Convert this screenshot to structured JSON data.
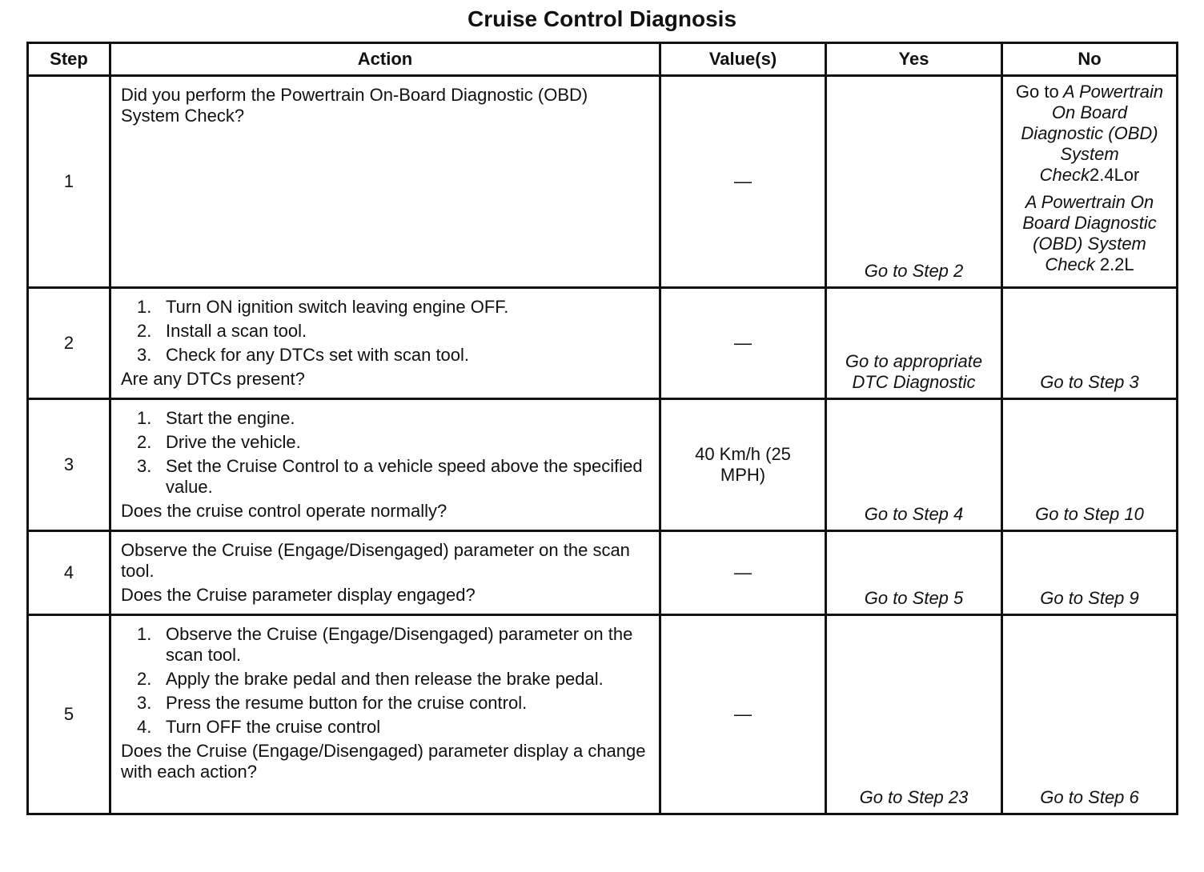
{
  "title": "Cruise Control Diagnosis",
  "table": {
    "headers": [
      "Step",
      "Action",
      "Value(s)",
      "Yes",
      "No"
    ],
    "rows": [
      {
        "step": "1",
        "action": {
          "lead": "Did you perform the Powertrain On-Board Diagnostic (OBD) System Check?"
        },
        "value": "—",
        "yes": "Go to Step 2",
        "no": {
          "prefix": "Go to",
          "links": [
            {
              "title": "A Powertrain On Board Diagnostic (OBD) System Check",
              "suffix": "2.4Lor"
            },
            {
              "title": "A Powertrain On Board Diagnostic (OBD) System Check",
              "suffix": "2.2L"
            }
          ]
        }
      },
      {
        "step": "2",
        "action": {
          "items": [
            {
              "n": "1.",
              "text": "Turn ON ignition switch leaving engine OFF."
            },
            {
              "n": "2.",
              "text": "Install a scan tool."
            },
            {
              "n": "3.",
              "text": "Check for any DTCs set with scan tool."
            }
          ],
          "question": "Are any DTCs present?"
        },
        "value": "—",
        "yes": "Go to appropriate DTC Diagnostic",
        "yes_italic": false,
        "no": "Go to Step 3"
      },
      {
        "step": "3",
        "action": {
          "items": [
            {
              "n": "1.",
              "text": "Start the engine."
            },
            {
              "n": "2.",
              "text": "Drive the vehicle."
            },
            {
              "n": "3.",
              "text": "Set the Cruise Control to a vehicle speed above the specified value."
            }
          ],
          "question": "Does the cruise control operate normally?"
        },
        "value": "40 Km/h (25 MPH)",
        "yes": "Go to Step 4",
        "no": "Go to Step 10"
      },
      {
        "step": "4",
        "action": {
          "lead": "Observe the Cruise (Engage/Disengaged) parameter on the scan tool.",
          "question": "Does the Cruise parameter display engaged?"
        },
        "value": "—",
        "yes": "Go to Step 5",
        "no": "Go to Step 9"
      },
      {
        "step": "5",
        "action": {
          "items": [
            {
              "n": "1.",
              "text": "Observe the Cruise (Engage/Disengaged) parameter on the scan tool."
            },
            {
              "n": "2.",
              "text": "Apply the brake pedal and then release the brake pedal."
            },
            {
              "n": "3.",
              "text": "Press the resume button for the cruise control."
            },
            {
              "n": "4.",
              "text": "Turn OFF the cruise control"
            }
          ],
          "question": "Does the Cruise (Engage/Disengaged) parameter display a change with each action?"
        },
        "value": "—",
        "yes": "Go to Step 23",
        "no": "Go to Step 6"
      }
    ]
  }
}
